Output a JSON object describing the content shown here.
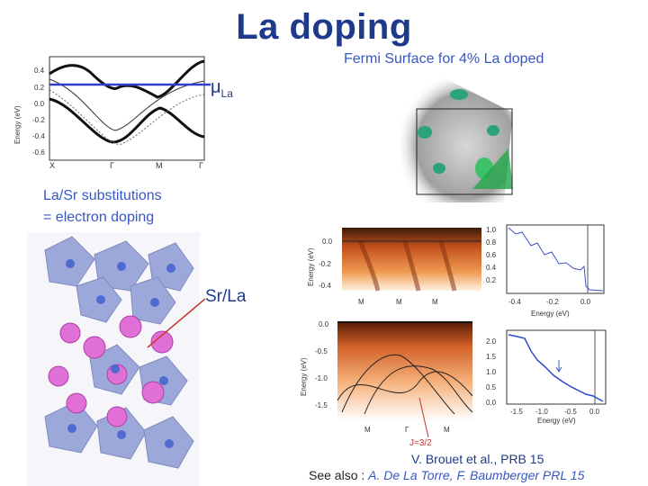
{
  "title": "La doping",
  "fermi_label": "Fermi Surface for 4% La doped",
  "mu_label": {
    "symbol": "μ",
    "sub": "La"
  },
  "substitution": {
    "line1": "La/Sr substitutions",
    "line2": "= electron doping"
  },
  "srla_label": "Sr/La",
  "j_label": "J=3/2",
  "citation": {
    "main": "V. Brouet et al., PRB 15",
    "prefix": "See also : ",
    "authors": "A. De La Torre, F. Baumberger PRL 15"
  },
  "band_plot": {
    "ylabel": "Energy (eV)",
    "yticks": [
      "0.4",
      "0.2",
      "0.0",
      "-0.2",
      "-0.4",
      "-0.6"
    ],
    "xticks": [
      "X",
      "Γ",
      "M",
      "Γ"
    ]
  },
  "arpes_top": {
    "ylabel": "Energy (eV)",
    "yticks": [
      "0.0",
      "-0.2",
      "-0.4"
    ],
    "xticks": [
      "M",
      "M",
      "M"
    ]
  },
  "edc_top": {
    "xlabel": "Energy (eV)",
    "yticks": [
      "1.0",
      "0.8",
      "0.6",
      "0.4",
      "0.2"
    ],
    "xticks": [
      "-0.4",
      "-0.2",
      "0.0"
    ]
  },
  "arpes_bottom": {
    "ylabel": "Energy (eV)",
    "yticks": [
      "0.0",
      "-0.5",
      "-1.0",
      "-1.5"
    ],
    "xticks": [
      "M",
      "Γ",
      "M"
    ]
  },
  "edc_bottom": {
    "xlabel": "Energy (eV)",
    "yticks": [
      "2.0",
      "1.5",
      "1.0",
      "0.5",
      "0.0"
    ],
    "xticks": [
      "-1.5",
      "-1.0",
      "-0.5",
      "0.0"
    ]
  },
  "colors": {
    "title": "#1f3a8a",
    "accent": "#3757c2",
    "mu_line": "#2d3fd0",
    "pointer": "#c0392b"
  }
}
